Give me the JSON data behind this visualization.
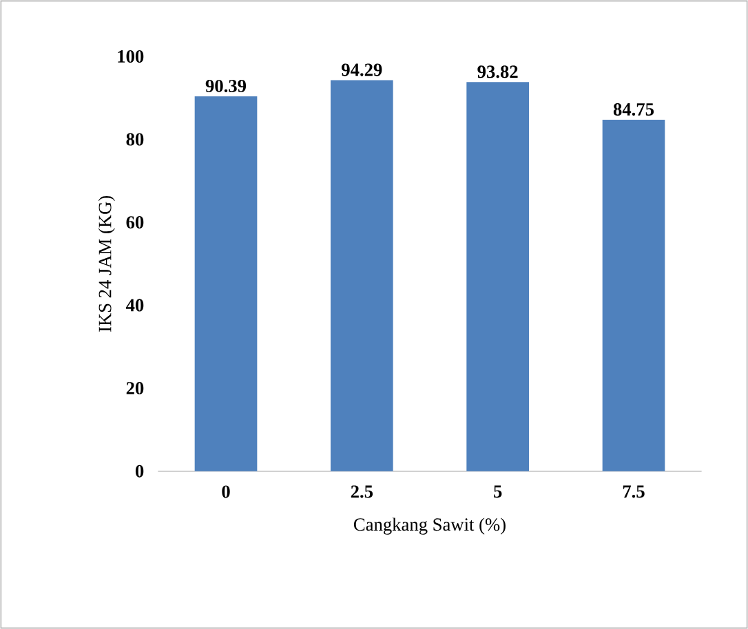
{
  "chart_data": {
    "type": "bar",
    "xlabel": "Cangkang Sawit (%)",
    "ylabel": "IKS 24 JAM (KG)",
    "categories": [
      "0",
      "2.5",
      "5",
      "7.5"
    ],
    "values": [
      90.39,
      94.29,
      93.82,
      84.75
    ],
    "color": "#4f81bd",
    "ylim": [
      0,
      100
    ],
    "yticks": [
      0,
      20,
      40,
      60,
      80,
      100
    ],
    "data_labels": true
  }
}
